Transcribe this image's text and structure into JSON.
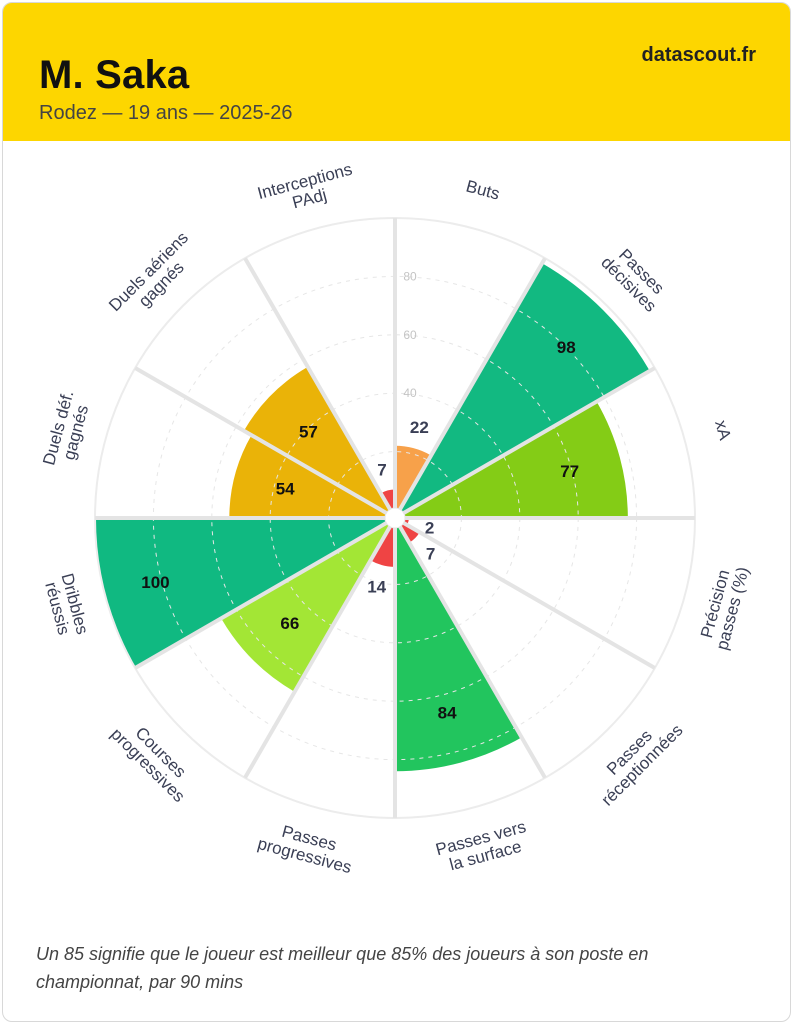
{
  "header": {
    "player_name": "M. Saka",
    "subtitle": "Rodez — 19 ans — 2025-26",
    "brand": "datascout.fr",
    "background_color": "#fdd600"
  },
  "footnote": "Un 85 signifie que le joueur est meilleur que 85% des joueurs à son poste en championnat, par 90 mins",
  "chart_data": {
    "type": "pie",
    "subtype": "radial-bar (pizza)",
    "range": [
      0,
      100
    ],
    "rings": [
      20,
      40,
      60,
      80,
      100
    ],
    "tick_labels": [
      "40",
      "60",
      "80"
    ],
    "segments": [
      {
        "label": "Buts",
        "value": 22,
        "color": "#f7a14a"
      },
      {
        "label": "Passes décisives",
        "value": 98,
        "color": "#12b981"
      },
      {
        "label": "xA",
        "value": 77,
        "color": "#84cc16"
      },
      {
        "label": "Précision passes (%)",
        "value": 2,
        "color": "#ef4444"
      },
      {
        "label": "Passes réceptionnées",
        "value": 7,
        "color": "#ef4444"
      },
      {
        "label": "Passes vers la surface",
        "value": 84,
        "color": "#22c55e"
      },
      {
        "label": "Passes progressives",
        "value": 14,
        "color": "#ef4444"
      },
      {
        "label": "Courses progressives",
        "value": 66,
        "color": "#a3e635"
      },
      {
        "label": "Dribbles réussis",
        "value": 100,
        "color": "#10b981"
      },
      {
        "label": "Duels déf. gagnés",
        "value": 54,
        "color": "#eab308"
      },
      {
        "label": "Duels aériens gagnés",
        "value": 57,
        "color": "#eab308"
      },
      {
        "label": "Interceptions PAdj",
        "value": 7,
        "color": "#ef4444"
      }
    ]
  }
}
